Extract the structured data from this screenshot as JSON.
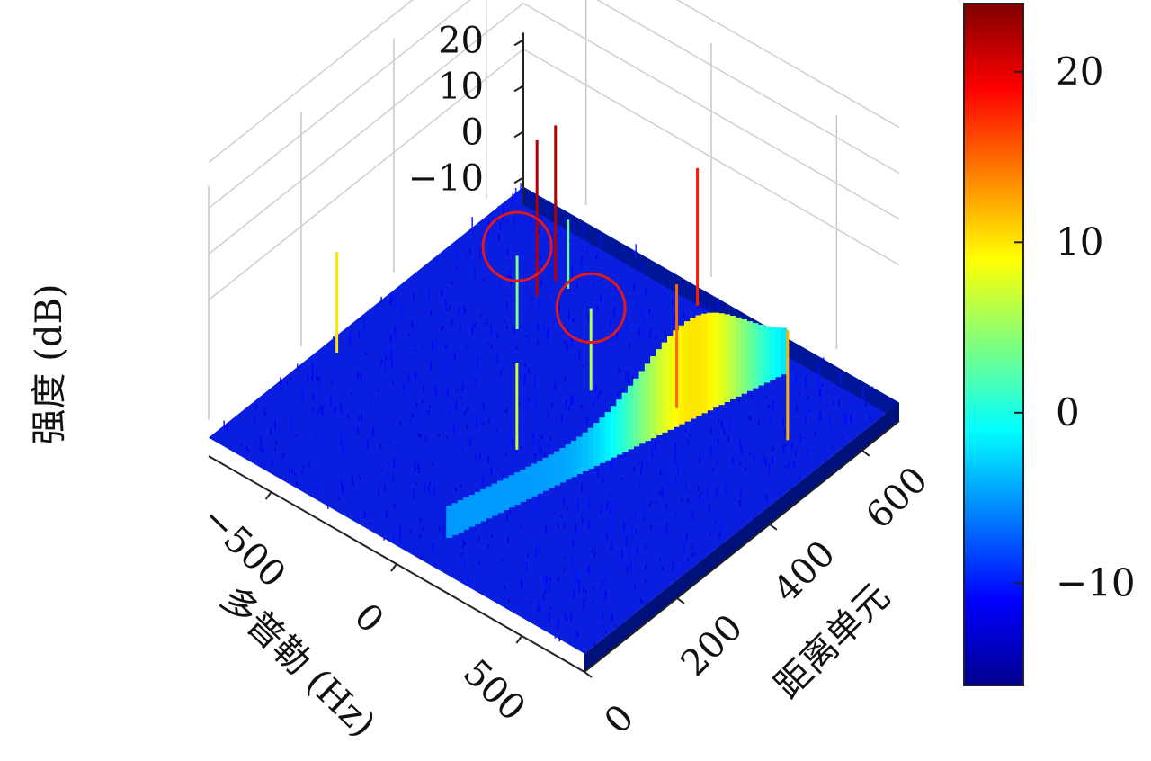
{
  "chart_data": {
    "type": "surface3d",
    "colormap": "jet",
    "x_axis": {
      "label": "多普勒 (Hz)",
      "ticks": [
        -500,
        0,
        500
      ],
      "tick_labels": [
        "−500",
        "0",
        "500"
      ],
      "range": [
        -750,
        750
      ]
    },
    "y_axis": {
      "label": "距离单元",
      "ticks": [
        0,
        200,
        400,
        600
      ],
      "tick_labels": [
        "0",
        "200",
        "400",
        "600"
      ],
      "range": [
        0,
        680
      ]
    },
    "z_axis": {
      "label": "强度 (dB)",
      "ticks": [
        -10,
        0,
        10,
        20
      ],
      "tick_labels": [
        "−10",
        "0",
        "10",
        "20"
      ],
      "range": [
        -16,
        24
      ]
    },
    "colorbar": {
      "range": [
        -16,
        24
      ],
      "ticks": [
        -10,
        0,
        10,
        20
      ],
      "tick_labels": [
        "−10",
        "0",
        "10",
        "20"
      ],
      "location": "right"
    },
    "noise_floor_db": -13,
    "peaks": [
      {
        "doppler_hz": -700,
        "range_cell": 250,
        "intensity_db": 10
      },
      {
        "doppler_hz": -400,
        "range_cell": 520,
        "intensity_db": 22
      },
      {
        "doppler_hz": -400,
        "range_cell": 560,
        "intensity_db": 22
      },
      {
        "doppler_hz": -350,
        "range_cell": 560,
        "intensity_db": 3
      },
      {
        "doppler_hz": -350,
        "range_cell": 450,
        "intensity_db": 4
      },
      {
        "doppler_hz": 0,
        "range_cell": 650,
        "intensity_db": 18
      },
      {
        "doppler_hz": 0,
        "range_cell": 420,
        "intensity_db": 6
      },
      {
        "doppler_hz": 0,
        "range_cell": 260,
        "intensity_db": 7
      },
      {
        "doppler_hz": 250,
        "range_cell": 470,
        "intensity_db": 15
      },
      {
        "doppler_hz": 600,
        "range_cell": 520,
        "intensity_db": 12
      }
    ],
    "clutter_ridge": {
      "doppler_hz_range": [
        100,
        400
      ],
      "intensity_db_range": [
        -5,
        10
      ]
    },
    "annotations": [
      {
        "shape": "circle",
        "color": "#e0191c",
        "doppler_hz": -350,
        "range_cell": 450
      },
      {
        "shape": "circle",
        "color": "#e0191c",
        "doppler_hz": 0,
        "range_cell": 420
      }
    ],
    "grid": true
  }
}
